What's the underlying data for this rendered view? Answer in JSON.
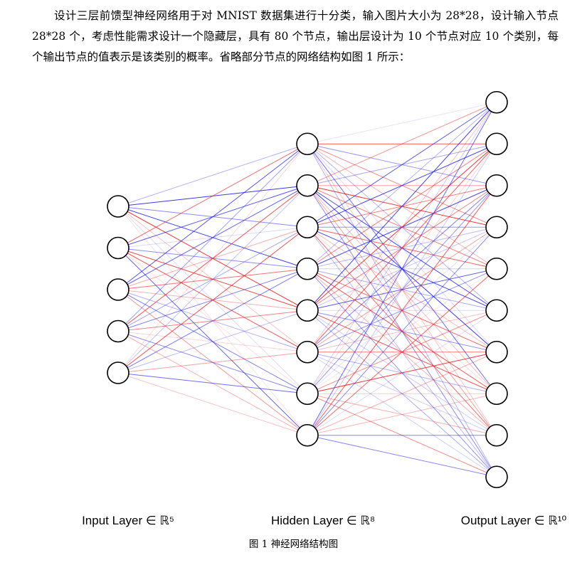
{
  "paragraph": "设计三层前馈型神经网络用于对 MNIST 数据集进行十分类，输入图片大小为 28*28，设计输入节点 28*28 个，考虑性能需求设计一个隐藏层，具有 80 个节点，输出层设计为 10 个节点对应 10 个类别，每个输出节点的值表示是该类别的概率。省略部分节点的网络结构如图 1 所示：",
  "diagram": {
    "layers": [
      {
        "label": "Input Layer ∈ ℝ⁵",
        "nodes": 5
      },
      {
        "label": "Hidden Layer ∈ ℝ⁸",
        "nodes": 8
      },
      {
        "label": "Output Layer ∈ ℝ¹⁰",
        "nodes": 10
      }
    ],
    "colors": {
      "positive": "#ee2222",
      "negative": "#2222ee",
      "node_fill": "#ffffff",
      "node_stroke": "#000000"
    }
  },
  "caption": "图 1  神经网络结构图"
}
